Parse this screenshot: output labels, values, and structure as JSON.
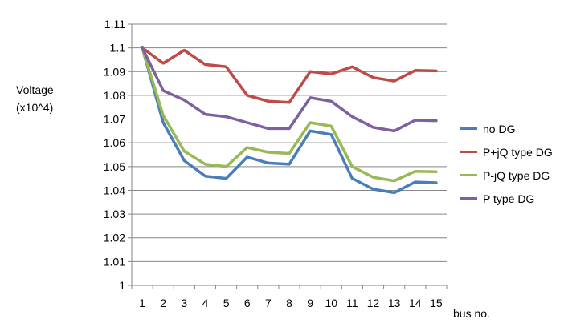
{
  "chart_data": {
    "type": "line",
    "title": "",
    "ylabel_lines": [
      "Voltage",
      "(x10^4)"
    ],
    "xlabel": "bus no.",
    "x": [
      1,
      2,
      3,
      4,
      5,
      6,
      7,
      8,
      9,
      10,
      11,
      12,
      13,
      14,
      15
    ],
    "ylim": [
      1,
      1.11
    ],
    "yticks": [
      "1",
      "1.01",
      "1.02",
      "1.03",
      "1.04",
      "1.05",
      "1.06",
      "1.07",
      "1.08",
      "1.09",
      "1.1",
      "1.11"
    ],
    "grid": true,
    "legend_position": "right",
    "series": [
      {
        "name": "no DG",
        "color": "#4a7ebb",
        "values": [
          1.1,
          1.0685,
          1.0525,
          1.046,
          1.045,
          1.054,
          1.0515,
          1.051,
          1.065,
          1.0635,
          1.045,
          1.0405,
          1.039,
          1.0435,
          1.0432
        ]
      },
      {
        "name": "P+jQ type DG",
        "color": "#be4b48",
        "values": [
          1.1,
          1.0935,
          1.099,
          1.093,
          1.092,
          1.08,
          1.0775,
          1.077,
          1.09,
          1.089,
          1.092,
          1.0875,
          1.086,
          1.0905,
          1.0903
        ]
      },
      {
        "name": "P-jQ type DG",
        "color": "#98b954",
        "values": [
          1.1,
          1.0715,
          1.0565,
          1.051,
          1.05,
          1.058,
          1.056,
          1.0555,
          1.0685,
          1.067,
          1.05,
          1.0455,
          1.044,
          1.048,
          1.0478
        ]
      },
      {
        "name": "P type DG",
        "color": "#7d60a0",
        "values": [
          1.1,
          1.082,
          1.078,
          1.072,
          1.071,
          1.0685,
          1.066,
          1.066,
          1.079,
          1.0775,
          1.071,
          1.0665,
          1.065,
          1.0695,
          1.0693
        ]
      }
    ]
  }
}
